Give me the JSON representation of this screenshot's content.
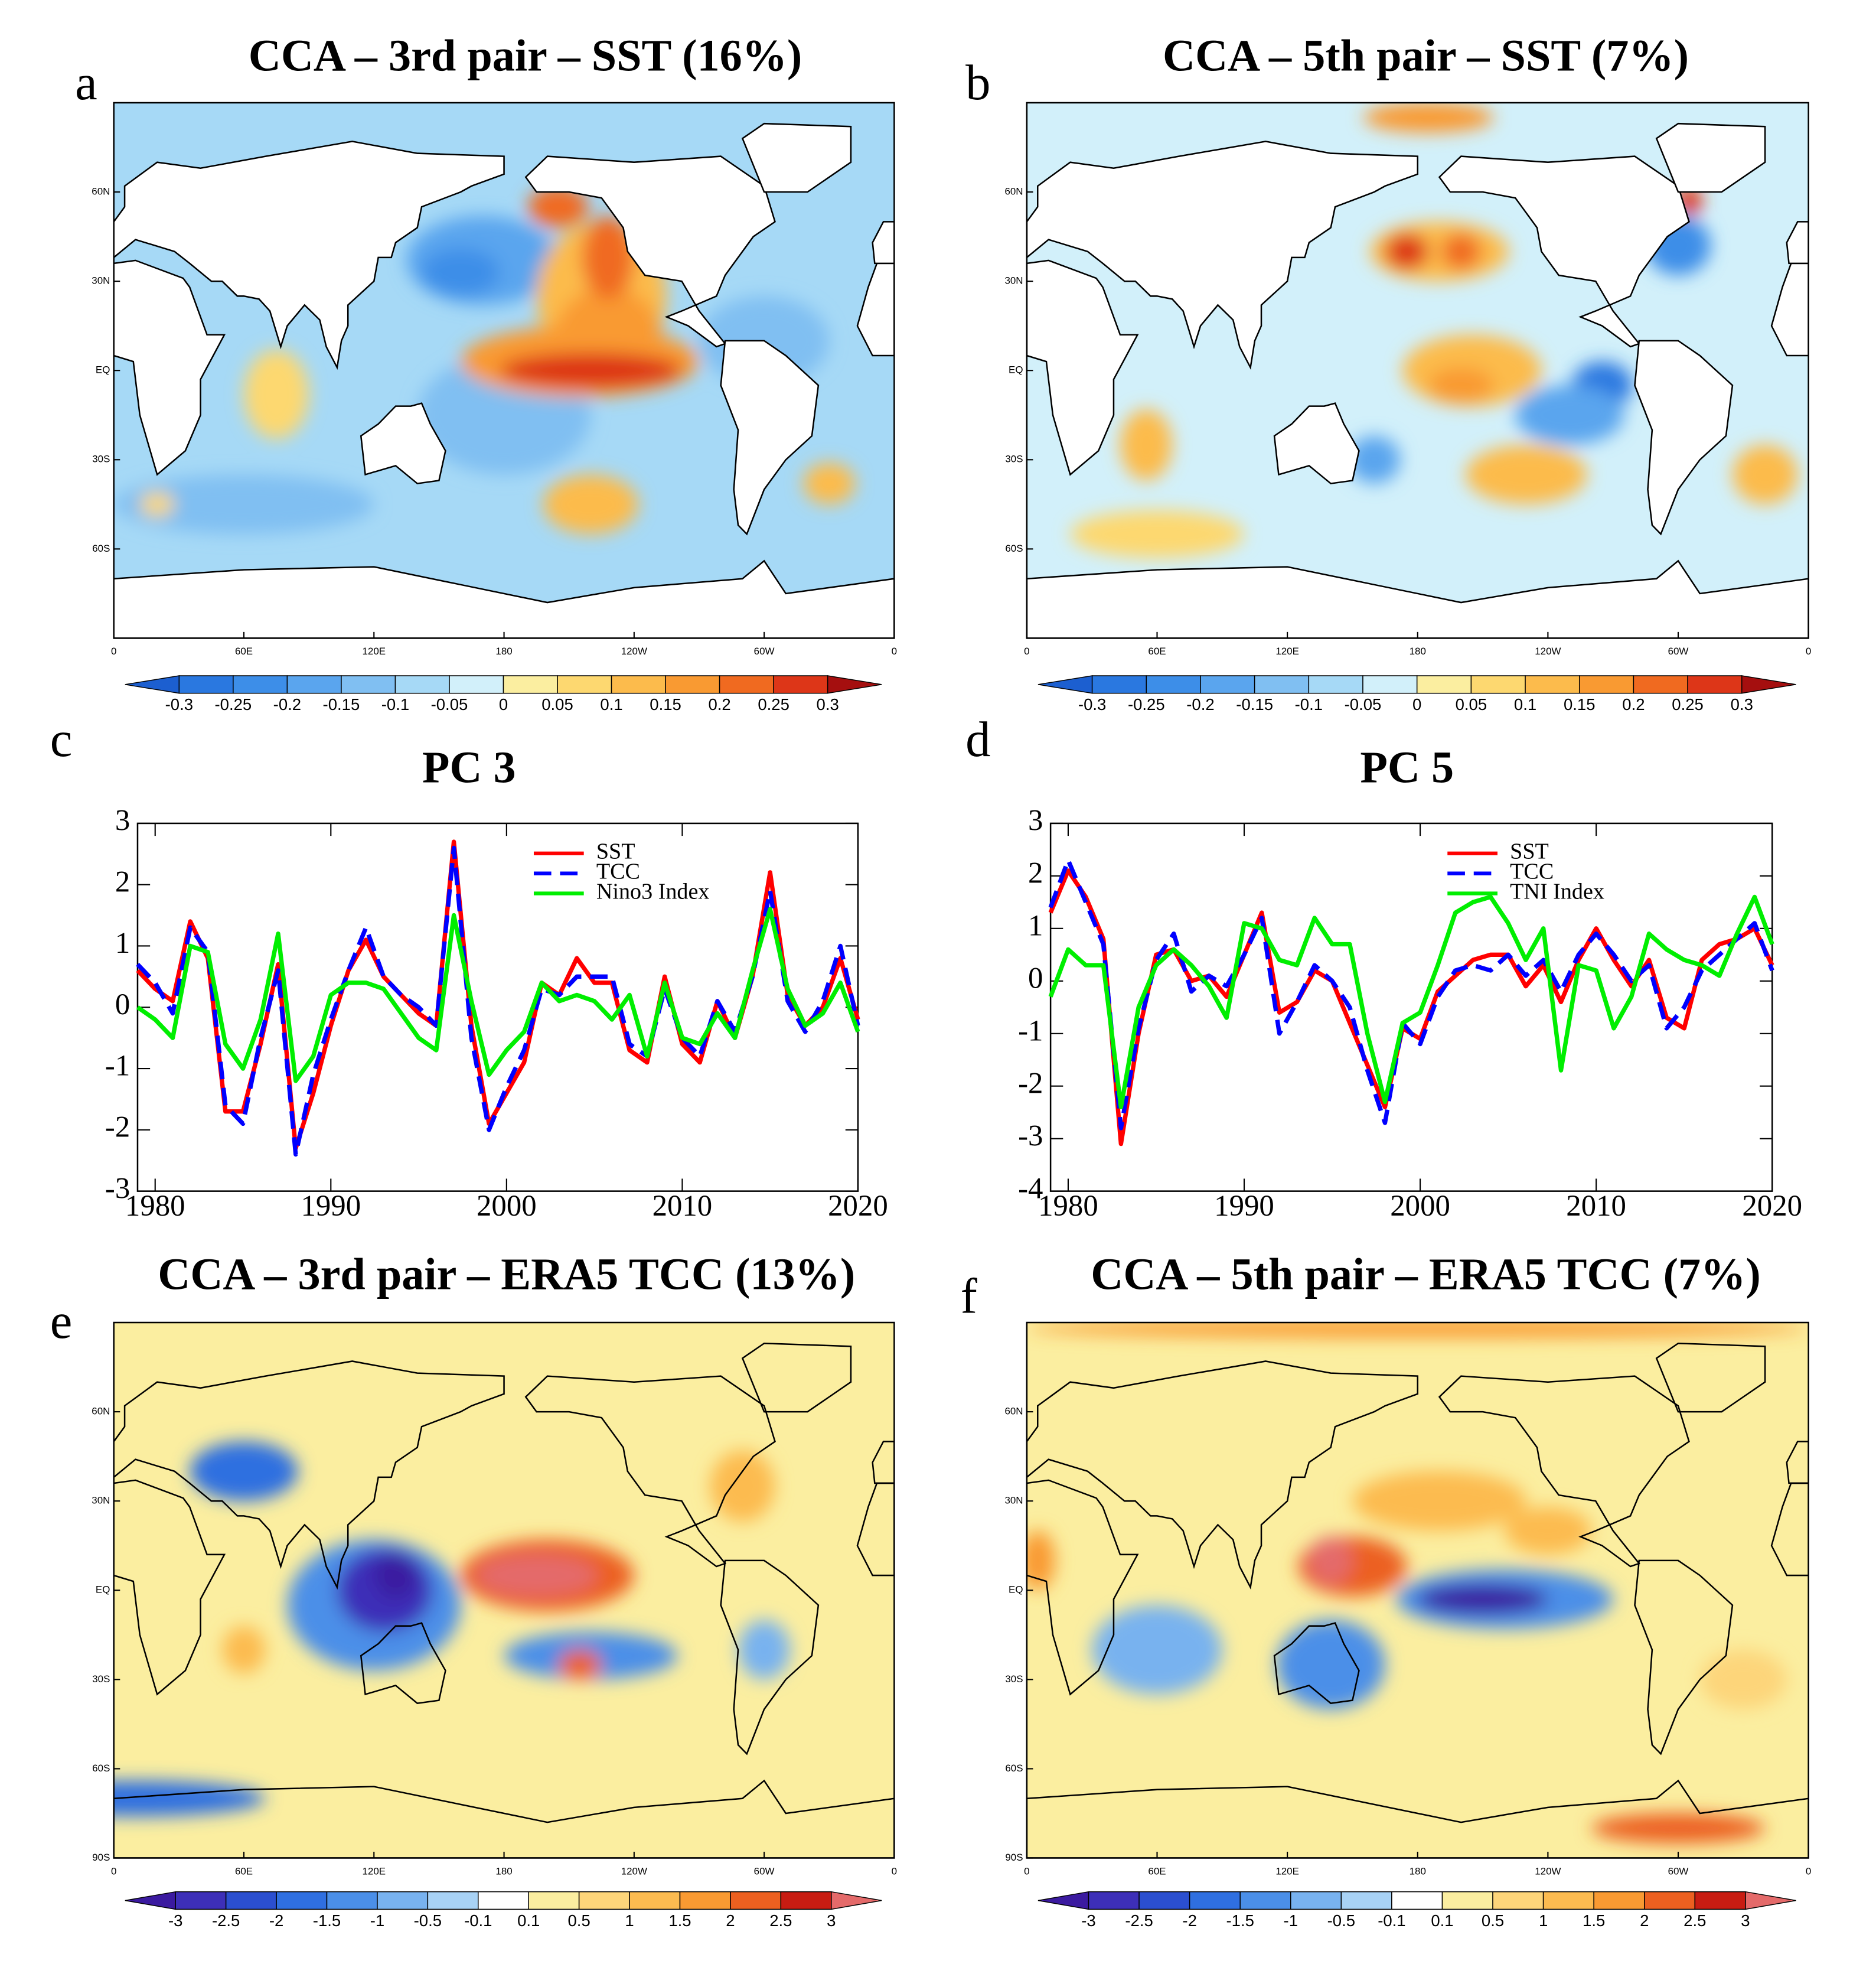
{
  "chart_data": [
    {
      "type": "map",
      "panel_label": "a",
      "title": "CCA – 3rd pair – SST (16%)",
      "xlim": [
        0,
        360
      ],
      "xticks": [
        0,
        {
          "value": 60,
          "label": "60E"
        },
        {
          "value": 120,
          "label": "120E"
        },
        180,
        {
          "value": 240,
          "label": "120W"
        },
        {
          "value": 300,
          "label": "60W"
        },
        {
          "value": 360,
          "label": "0"
        }
      ],
      "ylim": [
        -90,
        90
      ],
      "yticks": [
        {
          "value": 60,
          "label": "60N"
        },
        {
          "value": 30,
          "label": "30N"
        },
        {
          "value": 0,
          "label": "EQ"
        },
        {
          "value": -30,
          "label": "30S"
        },
        {
          "value": -60,
          "label": "60S"
        }
      ],
      "colorbar": {
        "levels": [
          -0.3,
          -0.25,
          -0.2,
          -0.15,
          -0.1,
          -0.05,
          0,
          0.05,
          0.1,
          0.15,
          0.2,
          0.25,
          0.3
        ],
        "colors": [
          "#1c5fd0",
          "#2a78e0",
          "#3d8ee8",
          "#5aa5ee",
          "#80bff2",
          "#a6d9f6",
          "#d2f0fa",
          "#fbeea0",
          "#fdd870",
          "#fcbb4c",
          "#f99a32",
          "#f06a20",
          "#dd3618",
          "#a50f0f"
        ]
      }
    },
    {
      "type": "map",
      "panel_label": "b",
      "title": "CCA – 5th pair – SST (7%)",
      "xlim": [
        0,
        360
      ],
      "xticks": [
        0,
        {
          "value": 60,
          "label": "60E"
        },
        {
          "value": 120,
          "label": "120E"
        },
        180,
        {
          "value": 240,
          "label": "120W"
        },
        {
          "value": 300,
          "label": "60W"
        },
        {
          "value": 360,
          "label": "0"
        }
      ],
      "ylim": [
        -90,
        90
      ],
      "yticks": [
        {
          "value": 60,
          "label": "60N"
        },
        {
          "value": 30,
          "label": "30N"
        },
        {
          "value": 0,
          "label": "EQ"
        },
        {
          "value": -30,
          "label": "30S"
        },
        {
          "value": -60,
          "label": "60S"
        }
      ],
      "colorbar": {
        "levels": [
          -0.3,
          -0.25,
          -0.2,
          -0.15,
          -0.1,
          -0.05,
          0,
          0.05,
          0.1,
          0.15,
          0.2,
          0.25,
          0.3
        ],
        "colors": [
          "#1c5fd0",
          "#2a78e0",
          "#3d8ee8",
          "#5aa5ee",
          "#80bff2",
          "#a6d9f6",
          "#d2f0fa",
          "#fbeea0",
          "#fdd870",
          "#fcbb4c",
          "#f99a32",
          "#f06a20",
          "#dd3618",
          "#a50f0f"
        ]
      }
    },
    {
      "type": "line",
      "panel_label": "c",
      "title": "PC 3",
      "x": [
        1979,
        1980,
        1981,
        1982,
        1983,
        1984,
        1985,
        1986,
        1987,
        1988,
        1989,
        1990,
        1991,
        1992,
        1993,
        1994,
        1995,
        1996,
        1997,
        1998,
        1999,
        2000,
        2001,
        2002,
        2003,
        2004,
        2005,
        2006,
        2007,
        2008,
        2009,
        2010,
        2011,
        2012,
        2013,
        2014,
        2015,
        2016,
        2017,
        2018,
        2019,
        2020
      ],
      "xlim": [
        1979,
        2020
      ],
      "xticks": [
        1980,
        1990,
        2000,
        2010,
        2020
      ],
      "ylim": [
        -3,
        3
      ],
      "yticks": [
        -3,
        -2,
        -1,
        0,
        1,
        2,
        3
      ],
      "legend": "upper right",
      "series": [
        {
          "name": "SST",
          "color": "#ff0000",
          "linestyle": "solid",
          "values": [
            0.6,
            0.3,
            0.1,
            1.4,
            0.8,
            -1.7,
            -1.7,
            -0.6,
            0.7,
            -2.3,
            -1.4,
            -0.3,
            0.6,
            1.1,
            0.5,
            0.2,
            -0.1,
            -0.3,
            2.7,
            -0.3,
            -1.9,
            -1.4,
            -0.9,
            0.4,
            0.2,
            0.8,
            0.4,
            0.4,
            -0.7,
            -0.9,
            0.5,
            -0.6,
            -0.9,
            0.1,
            -0.5,
            0.5,
            2.2,
            0.2,
            -0.3,
            0.0,
            0.8,
            -0.2
          ]
        },
        {
          "name": "TCC",
          "color": "#0000ff",
          "linestyle": "dashed",
          "values": [
            0.7,
            0.4,
            -0.1,
            1.3,
            0.9,
            -1.6,
            -1.9,
            -0.5,
            0.6,
            -2.4,
            -1.1,
            -0.2,
            0.6,
            1.3,
            0.5,
            0.2,
            0.0,
            -0.3,
            2.6,
            -0.5,
            -2.0,
            -1.3,
            -0.7,
            0.3,
            0.2,
            0.5,
            0.5,
            0.5,
            -0.6,
            -0.8,
            0.3,
            -0.5,
            -0.8,
            0.1,
            -0.4,
            0.5,
            1.9,
            0.1,
            -0.4,
            0.1,
            1.0,
            -0.3
          ]
        },
        {
          "name": "Nino3 Index",
          "color": "#00ee00",
          "linestyle": "solid",
          "values": [
            0.0,
            -0.2,
            -0.5,
            1.0,
            0.9,
            -0.6,
            -1.0,
            -0.2,
            1.2,
            -1.2,
            -0.8,
            0.2,
            0.4,
            0.4,
            0.3,
            -0.1,
            -0.5,
            -0.7,
            1.5,
            0.1,
            -1.1,
            -0.7,
            -0.4,
            0.4,
            0.1,
            0.2,
            0.1,
            -0.2,
            0.2,
            -0.8,
            0.4,
            -0.5,
            -0.6,
            -0.1,
            -0.5,
            0.6,
            1.6,
            0.3,
            -0.3,
            -0.1,
            0.4,
            -0.4
          ]
        }
      ]
    },
    {
      "type": "line",
      "panel_label": "d",
      "title": "PC 5",
      "x": [
        1979,
        1980,
        1981,
        1982,
        1983,
        1984,
        1985,
        1986,
        1987,
        1988,
        1989,
        1990,
        1991,
        1992,
        1993,
        1994,
        1995,
        1996,
        1997,
        1998,
        1999,
        2000,
        2001,
        2002,
        2003,
        2004,
        2005,
        2006,
        2007,
        2008,
        2009,
        2010,
        2011,
        2012,
        2013,
        2014,
        2015,
        2016,
        2017,
        2018,
        2019,
        2020
      ],
      "xlim": [
        1979,
        2020
      ],
      "xticks": [
        1980,
        1990,
        2000,
        2010,
        2020
      ],
      "ylim": [
        -4,
        3
      ],
      "yticks": [
        -4,
        -3,
        -2,
        -1,
        0,
        1,
        2,
        3
      ],
      "legend": "upper right",
      "series": [
        {
          "name": "SST",
          "color": "#ff0000",
          "linestyle": "solid",
          "values": [
            1.3,
            2.1,
            1.6,
            0.8,
            -3.1,
            -1.0,
            0.5,
            0.6,
            0.0,
            0.1,
            -0.3,
            0.5,
            1.3,
            -0.6,
            -0.4,
            0.2,
            0.0,
            -0.8,
            -1.6,
            -2.4,
            -0.9,
            -1.1,
            -0.2,
            0.1,
            0.4,
            0.5,
            0.5,
            -0.1,
            0.3,
            -0.4,
            0.4,
            1.0,
            0.4,
            -0.1,
            0.4,
            -0.7,
            -0.9,
            0.4,
            0.7,
            0.8,
            1.0,
            0.3
          ]
        },
        {
          "name": "TCC",
          "color": "#0000ff",
          "linestyle": "dashed",
          "values": [
            1.4,
            2.3,
            1.5,
            0.7,
            -2.8,
            -0.9,
            0.4,
            0.9,
            -0.2,
            0.1,
            -0.1,
            0.5,
            1.2,
            -1.0,
            -0.4,
            0.3,
            0.0,
            -0.5,
            -1.7,
            -2.7,
            -0.8,
            -1.2,
            -0.3,
            0.2,
            0.3,
            0.2,
            0.5,
            0.1,
            0.4,
            -0.2,
            0.5,
            0.9,
            0.5,
            0.0,
            0.3,
            -0.9,
            -0.5,
            0.2,
            0.5,
            0.8,
            1.1,
            0.2
          ]
        },
        {
          "name": "TNI Index",
          "color": "#00ee00",
          "linestyle": "solid",
          "values": [
            -0.3,
            0.6,
            0.3,
            0.3,
            -2.4,
            -0.5,
            0.3,
            0.6,
            0.3,
            -0.1,
            -0.7,
            1.1,
            1.0,
            0.4,
            0.3,
            1.2,
            0.7,
            0.7,
            -1.0,
            -2.3,
            -0.8,
            -0.6,
            0.3,
            1.3,
            1.5,
            1.6,
            1.1,
            0.4,
            1.0,
            -1.7,
            0.3,
            0.2,
            -0.9,
            -0.3,
            0.9,
            0.6,
            0.4,
            0.3,
            0.1,
            0.9,
            1.6,
            0.7
          ]
        }
      ]
    },
    {
      "type": "map",
      "panel_label": "e",
      "title": "CCA – 3rd pair – ERA5 TCC (13%)",
      "xlim": [
        0,
        360
      ],
      "xticks": [
        0,
        {
          "value": 60,
          "label": "60E"
        },
        {
          "value": 120,
          "label": "120E"
        },
        180,
        {
          "value": 240,
          "label": "120W"
        },
        {
          "value": 300,
          "label": "60W"
        },
        {
          "value": 360,
          "label": "0"
        }
      ],
      "ylim": [
        -90,
        90
      ],
      "yticks": [
        {
          "value": 60,
          "label": "60N"
        },
        {
          "value": 30,
          "label": "30N"
        },
        {
          "value": 0,
          "label": "EQ"
        },
        {
          "value": -30,
          "label": "30S"
        },
        {
          "value": -60,
          "label": "60S"
        },
        {
          "value": -90,
          "label": "90S"
        }
      ],
      "colorbar": {
        "levels": [
          -3,
          -2.5,
          -2,
          -1.5,
          -1,
          -0.5,
          -0.1,
          0.1,
          0.5,
          1,
          1.5,
          2,
          2.5,
          3
        ],
        "colors": [
          "#3b1aa0",
          "#3d2fb8",
          "#2b4fd0",
          "#2f6fe0",
          "#4b8fe8",
          "#78b2ef",
          "#a8d2f5",
          "#ffffff",
          "#fbeea0",
          "#fdd57a",
          "#fcbb50",
          "#f99a32",
          "#ec6020",
          "#c81c12",
          "#e46a6a"
        ]
      }
    },
    {
      "type": "map",
      "panel_label": "f",
      "title": "CCA – 5th pair – ERA5 TCC (7%)",
      "xlim": [
        0,
        360
      ],
      "xticks": [
        0,
        {
          "value": 60,
          "label": "60E"
        },
        {
          "value": 120,
          "label": "120E"
        },
        180,
        {
          "value": 240,
          "label": "120W"
        },
        {
          "value": 300,
          "label": "60W"
        },
        {
          "value": 360,
          "label": "0"
        }
      ],
      "ylim": [
        -90,
        90
      ],
      "yticks": [
        {
          "value": 60,
          "label": "60N"
        },
        {
          "value": 30,
          "label": "30N"
        },
        {
          "value": 0,
          "label": "EQ"
        },
        {
          "value": -30,
          "label": "30S"
        },
        {
          "value": -60,
          "label": "60S"
        },
        {
          "value": -90,
          "label": "90S"
        }
      ],
      "colorbar": {
        "levels": [
          -3,
          -2.5,
          -2,
          -1.5,
          -1,
          -0.5,
          -0.1,
          0.1,
          0.5,
          1,
          1.5,
          2,
          2.5,
          3
        ],
        "colors": [
          "#3b1aa0",
          "#3d2fb8",
          "#2b4fd0",
          "#2f6fe0",
          "#4b8fe8",
          "#78b2ef",
          "#a8d2f5",
          "#ffffff",
          "#fbeea0",
          "#fdd57a",
          "#fcbb50",
          "#f99a32",
          "#ec6020",
          "#c81c12",
          "#e46a6a"
        ]
      }
    }
  ]
}
